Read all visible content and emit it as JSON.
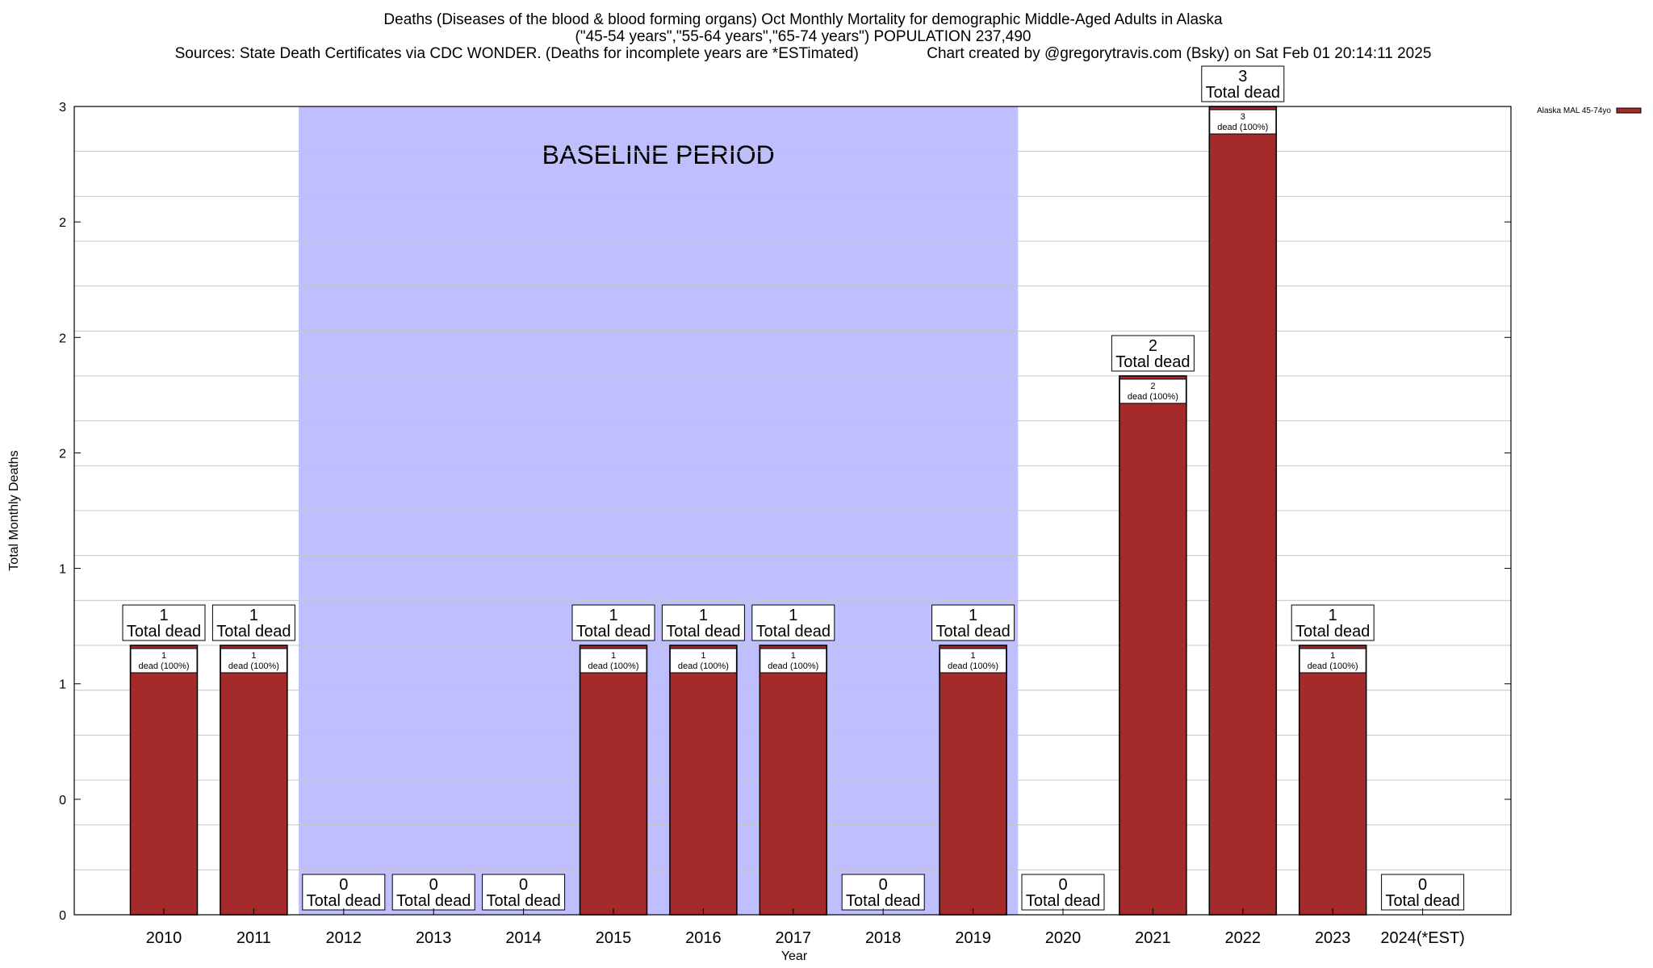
{
  "header": {
    "title_line1": "Deaths (Diseases of the blood & blood forming organs) Oct Monthly Mortality for demographic Middle-Aged Adults in Alaska",
    "title_line2": "(\"45-54 years\",\"55-64 years\",\"65-74 years\") POPULATION 237,490",
    "title_line3": "Sources: State Death Certificates via CDC WONDER. (Deaths for incomplete years are *ESTimated)                Chart created by @gregorytravis.com (Bsky) on Sat Feb 01 20:14:11 2025"
  },
  "chart_data": {
    "type": "bar",
    "title": "Deaths (Diseases of the blood & blood forming organs) Oct Monthly Mortality for demographic Middle-Aged Adults in Alaska",
    "xlabel": "Year",
    "ylabel": "Total Monthly Deaths",
    "categories": [
      "2010",
      "2011",
      "2012",
      "2013",
      "2014",
      "2015",
      "2016",
      "2017",
      "2018",
      "2019",
      "2020",
      "2021",
      "2022",
      "2023",
      "2024(*EST)"
    ],
    "series": [
      {
        "name": "Alaska MAL 45-74yo",
        "color": "#a52a2a",
        "values": [
          1,
          1,
          0,
          0,
          0,
          1,
          1,
          1,
          0,
          1,
          0,
          2,
          3,
          1,
          0
        ]
      }
    ],
    "ylim": [
      0,
      3
    ],
    "ytick_labels": [
      "0",
      "0",
      "1",
      "1",
      "2",
      "2",
      "2",
      "3"
    ],
    "grid": true,
    "legend_position": "top-right",
    "total_label_text": "Total dead",
    "bar_label_text": "dead (100%)",
    "baseline_period": {
      "label": "BASELINE PERIOD",
      "start_category": "2012",
      "end_category": "2019",
      "color": "#bfbfff"
    }
  }
}
